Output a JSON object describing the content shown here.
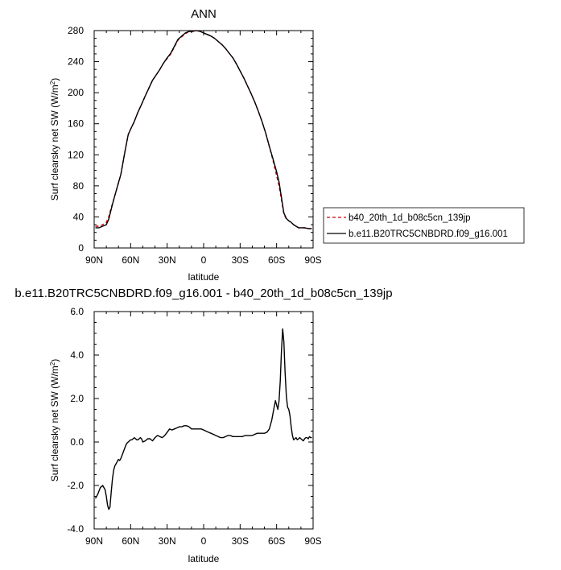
{
  "chart_data": [
    {
      "type": "line",
      "title": "ANN",
      "xlabel": "latitude",
      "ylabel": "Surf clearsky net SW (W/m",
      "ylabel_sup": "2",
      "ylabel_close": ")",
      "xlim": [
        90,
        -90
      ],
      "ylim": [
        0,
        280
      ],
      "x_ticks": [
        90,
        60,
        30,
        0,
        -30,
        -60,
        -90
      ],
      "x_tick_labels": [
        "90N",
        "60N",
        "30N",
        "0",
        "30S",
        "60S",
        "90S"
      ],
      "y_ticks": [
        0,
        40,
        80,
        120,
        160,
        200,
        240,
        280
      ],
      "y_tick_labels": [
        "0",
        "40",
        "80",
        "120",
        "160",
        "200",
        "240",
        "280"
      ],
      "legend_position": "right",
      "series": [
        {
          "name": "b40_20th_1d_b08c5cn_139jp",
          "color": "#cc0000",
          "dash": "dashed",
          "x": [
            89,
            86,
            83,
            80,
            78,
            76,
            74,
            72,
            70,
            68,
            66,
            64,
            62,
            60,
            57,
            54,
            51,
            48,
            45,
            42,
            39,
            36,
            33,
            30,
            27,
            24,
            21,
            18,
            15,
            12,
            9,
            6,
            3,
            0,
            -3,
            -6,
            -9,
            -12,
            -15,
            -18,
            -21,
            -24,
            -27,
            -30,
            -33,
            -36,
            -39,
            -42,
            -45,
            -48,
            -51,
            -54,
            -57,
            -60,
            -62,
            -64,
            -66,
            -68,
            -70,
            -72,
            -74,
            -76,
            -78,
            -80,
            -83,
            -86,
            -89
          ],
          "y": [
            28,
            28,
            30,
            33,
            40,
            52,
            62,
            73,
            84,
            95,
            113,
            130,
            146,
            153,
            163,
            175,
            185,
            196,
            206,
            216,
            223,
            230,
            238,
            244,
            250,
            259,
            268,
            272,
            276,
            279,
            279,
            280,
            279,
            277,
            275,
            273,
            270,
            266,
            262,
            257,
            251,
            245,
            237,
            228,
            219,
            209,
            199,
            188,
            176,
            163,
            148,
            131,
            113,
            93,
            80,
            62,
            44,
            37,
            35,
            33,
            30,
            28,
            26,
            26,
            26,
            25,
            25
          ]
        },
        {
          "name": "b.e11.B20TRC5CNBDRD.f09_g16.001",
          "color": "#000000",
          "dash": "solid",
          "x": [
            89,
            86,
            83,
            80,
            78,
            76,
            74,
            72,
            70,
            68,
            66,
            64,
            62,
            60,
            57,
            54,
            51,
            48,
            45,
            42,
            39,
            36,
            33,
            30,
            27,
            24,
            21,
            18,
            15,
            12,
            9,
            6,
            3,
            0,
            -3,
            -6,
            -9,
            -12,
            -15,
            -18,
            -21,
            -24,
            -27,
            -30,
            -33,
            -36,
            -39,
            -42,
            -45,
            -48,
            -51,
            -54,
            -57,
            -60,
            -62,
            -64,
            -66,
            -68,
            -70,
            -72,
            -74,
            -76,
            -78,
            -80,
            -83,
            -86,
            -89
          ],
          "y": [
            26,
            26,
            28,
            30,
            37,
            50,
            62,
            73,
            84,
            95,
            113,
            130,
            146,
            153,
            163,
            175,
            185,
            196,
            206,
            216,
            223,
            230,
            238,
            245,
            251,
            260,
            269,
            273,
            277,
            279,
            279,
            280,
            279,
            277,
            275,
            273,
            270,
            266,
            262,
            257,
            251,
            245,
            237,
            228,
            219,
            209,
            199,
            188,
            176,
            163,
            148,
            131,
            115,
            98,
            85,
            65,
            45,
            38,
            35,
            33,
            30,
            28,
            26,
            26,
            26,
            25,
            25
          ]
        }
      ]
    },
    {
      "type": "line",
      "title": "b.e11.B20TRC5CNBDRD.f09_g16.001 - b40_20th_1d_b08c5cn_139jp",
      "xlabel": "latitude",
      "ylabel": "Surf clearsky net SW (W/m",
      "ylabel_sup": "2",
      "ylabel_close": ")",
      "xlim": [
        90,
        -90
      ],
      "ylim": [
        -4,
        6
      ],
      "x_ticks": [
        90,
        60,
        30,
        0,
        -30,
        -60,
        -90
      ],
      "x_tick_labels": [
        "90N",
        "60N",
        "30N",
        "0",
        "30S",
        "60S",
        "90S"
      ],
      "y_ticks": [
        -4,
        -2,
        0,
        2,
        4,
        6
      ],
      "y_tick_labels": [
        "-4.0",
        "-2.0",
        "0.0",
        "2.0",
        "4.0",
        "6.0"
      ],
      "series": [
        {
          "name": "",
          "color": "#000000",
          "dash": "solid",
          "x": [
            89,
            87,
            85,
            83,
            81,
            80,
            79,
            78,
            77,
            76,
            75,
            74,
            73,
            72,
            71,
            70,
            69,
            68,
            67,
            66,
            65,
            64,
            63,
            62,
            61,
            60,
            59,
            58,
            57,
            56,
            55,
            54,
            53,
            52,
            51,
            50,
            48,
            46,
            44,
            42,
            40,
            38,
            36,
            34,
            32,
            30,
            28,
            26,
            24,
            22,
            20,
            18,
            16,
            14,
            12,
            10,
            8,
            6,
            4,
            2,
            0,
            -2,
            -4,
            -6,
            -8,
            -10,
            -12,
            -14,
            -16,
            -18,
            -20,
            -22,
            -24,
            -26,
            -28,
            -30,
            -32,
            -34,
            -36,
            -38,
            -40,
            -42,
            -44,
            -46,
            -48,
            -50,
            -52,
            -54,
            -55,
            -56,
            -57,
            -58,
            -59,
            -60,
            -61,
            -62,
            -63,
            -64,
            -65,
            -66,
            -67,
            -68,
            -69,
            -70,
            -71,
            -72,
            -73,
            -74,
            -75,
            -76,
            -77,
            -78,
            -79,
            -80,
            -81,
            -82,
            -83,
            -84,
            -85,
            -86,
            -87,
            -88,
            -89
          ],
          "y": [
            -2.6,
            -2.4,
            -2.1,
            -2.0,
            -2.2,
            -2.5,
            -2.9,
            -3.1,
            -3.0,
            -2.3,
            -1.7,
            -1.3,
            -1.1,
            -1.0,
            -0.9,
            -0.8,
            -0.85,
            -0.75,
            -0.6,
            -0.45,
            -0.3,
            -0.15,
            -0.05,
            0.0,
            0.05,
            0.1,
            0.1,
            0.15,
            0.2,
            0.15,
            0.1,
            0.1,
            0.15,
            0.2,
            0.15,
            0.0,
            0.05,
            0.15,
            0.15,
            0.05,
            0.2,
            0.3,
            0.25,
            0.2,
            0.3,
            0.45,
            0.6,
            0.55,
            0.6,
            0.65,
            0.7,
            0.7,
            0.75,
            0.75,
            0.7,
            0.6,
            0.6,
            0.6,
            0.6,
            0.6,
            0.55,
            0.5,
            0.45,
            0.4,
            0.35,
            0.3,
            0.25,
            0.2,
            0.2,
            0.25,
            0.3,
            0.3,
            0.25,
            0.25,
            0.25,
            0.25,
            0.25,
            0.3,
            0.3,
            0.3,
            0.3,
            0.35,
            0.4,
            0.4,
            0.4,
            0.4,
            0.45,
            0.6,
            0.8,
            1.0,
            1.3,
            1.6,
            1.9,
            1.7,
            1.5,
            1.9,
            2.8,
            4.2,
            5.2,
            4.6,
            3.2,
            2.1,
            1.6,
            1.5,
            1.2,
            0.7,
            0.3,
            0.1,
            0.15,
            0.2,
            0.1,
            0.15,
            0.2,
            0.15,
            0.1,
            0.05,
            0.15,
            0.2,
            0.2,
            0.15,
            0.25,
            0.2,
            0.2
          ]
        }
      ]
    }
  ]
}
